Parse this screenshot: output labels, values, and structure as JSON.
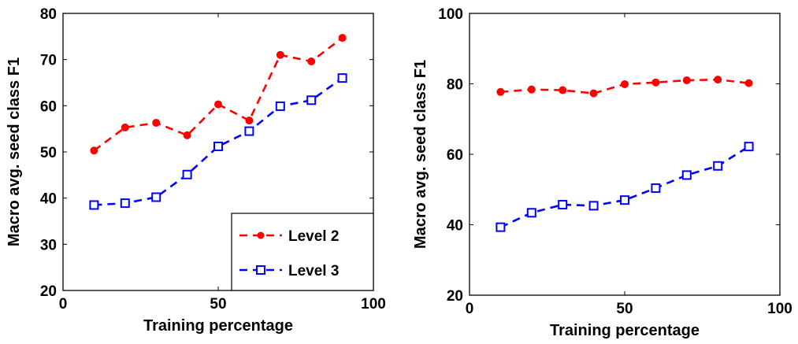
{
  "chart_data": [
    {
      "type": "line",
      "title": "",
      "xlabel": "Training percentage",
      "ylabel": "Macro avg. seed class F1",
      "xlim": [
        0,
        100
      ],
      "ylim": [
        20,
        80
      ],
      "xticks": [
        0,
        50,
        100
      ],
      "yticks": [
        20,
        30,
        40,
        50,
        60,
        70,
        80
      ],
      "x": [
        10,
        20,
        30,
        40,
        50,
        60,
        70,
        80,
        90
      ],
      "series": [
        {
          "name": "Level 2",
          "color": "#ff0000",
          "marker": "circle",
          "values": [
            50.3,
            55.3,
            56.3,
            53.6,
            60.3,
            56.8,
            71.0,
            69.6,
            74.7
          ]
        },
        {
          "name": "Level 3",
          "color": "#0000ff",
          "marker": "square",
          "values": [
            38.5,
            38.9,
            40.2,
            45.1,
            51.2,
            54.5,
            59.9,
            61.2,
            66.0
          ]
        }
      ],
      "legend": "bottom-right",
      "grid": false
    },
    {
      "type": "line",
      "title": "",
      "xlabel": "Training percentage",
      "ylabel": "Macro avg. seed class F1",
      "xlim": [
        0,
        100
      ],
      "ylim": [
        20,
        100
      ],
      "xticks": [
        0,
        50,
        100
      ],
      "yticks": [
        20,
        40,
        60,
        80,
        100
      ],
      "x": [
        10,
        20,
        30,
        40,
        50,
        60,
        70,
        80,
        90
      ],
      "series": [
        {
          "color": "#ff0000",
          "marker": "circle",
          "values": [
            77.7,
            78.4,
            78.2,
            77.3,
            79.9,
            80.4,
            81.0,
            81.2,
            80.2
          ]
        },
        {
          "color": "#0000ff",
          "marker": "square",
          "values": [
            39.3,
            43.4,
            45.7,
            45.4,
            47.0,
            50.4,
            54.1,
            56.7,
            62.2
          ]
        }
      ],
      "grid": false
    }
  ]
}
